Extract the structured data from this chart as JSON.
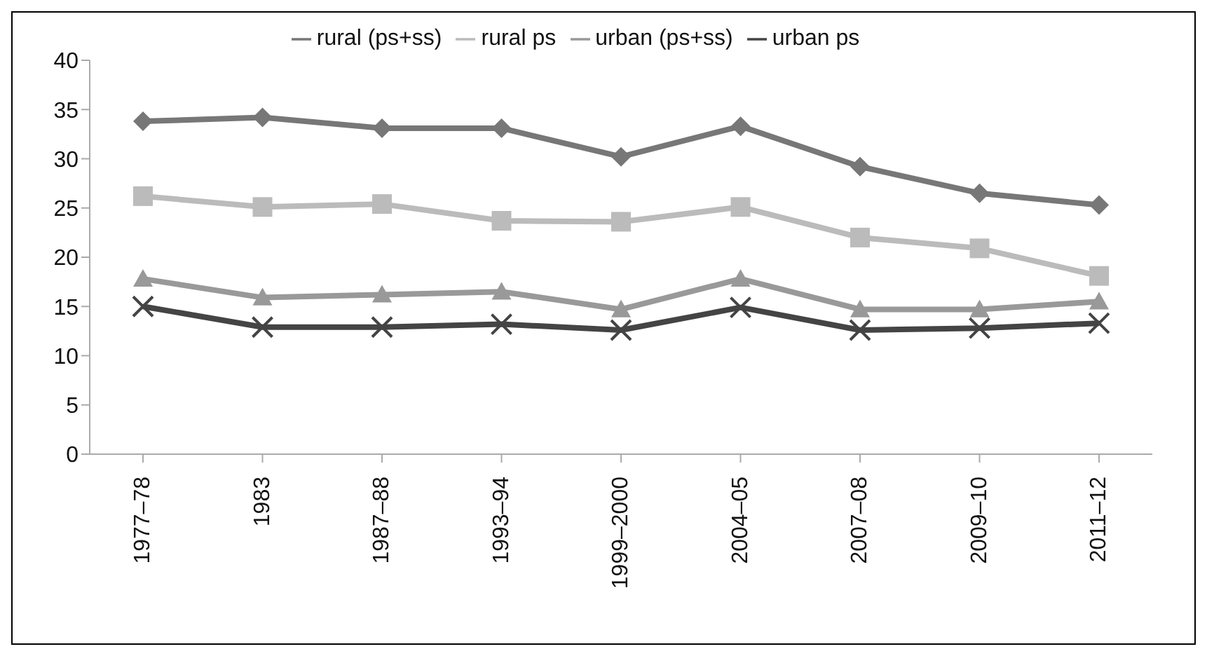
{
  "chart_data": {
    "type": "line",
    "categories": [
      "1977–78",
      "1983",
      "1987–88",
      "1993–94",
      "1999–2000",
      "2004–05",
      "2007–08",
      "2009–10",
      "2011–12"
    ],
    "series": [
      {
        "name": "rural (ps+ss)",
        "color": "#777777",
        "marker": "diamond",
        "values": [
          33.8,
          34.2,
          33.1,
          33.1,
          30.2,
          33.3,
          29.2,
          26.5,
          25.3
        ]
      },
      {
        "name": "rural ps",
        "color": "#bbbbbb",
        "marker": "square",
        "values": [
          26.2,
          25.1,
          25.4,
          23.7,
          23.6,
          25.1,
          22.0,
          20.9,
          18.1
        ]
      },
      {
        "name": "urban (ps+ss)",
        "color": "#999999",
        "marker": "triangle",
        "values": [
          17.8,
          15.9,
          16.2,
          16.5,
          14.7,
          17.8,
          14.7,
          14.7,
          15.5
        ]
      },
      {
        "name": "urban ps",
        "color": "#444444",
        "marker": "cross",
        "values": [
          15.0,
          12.9,
          12.9,
          13.2,
          12.6,
          14.9,
          12.6,
          12.8,
          13.3
        ]
      }
    ],
    "ylim": [
      0,
      40
    ],
    "yticks": [
      0,
      5,
      10,
      15,
      20,
      25,
      30,
      35,
      40
    ],
    "grid": false,
    "legend": "top",
    "line_style": "solid"
  }
}
